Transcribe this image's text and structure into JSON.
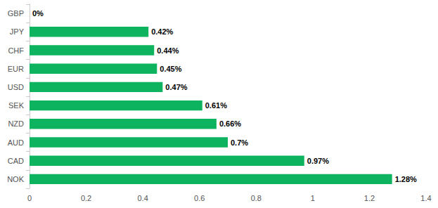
{
  "chart_data": {
    "type": "bar",
    "orientation": "horizontal",
    "categories": [
      "GBP",
      "JPY",
      "CHF",
      "EUR",
      "USD",
      "SEK",
      "NZD",
      "AUD",
      "CAD",
      "NOK"
    ],
    "values": [
      0,
      0.42,
      0.44,
      0.45,
      0.47,
      0.61,
      0.66,
      0.7,
      0.97,
      1.28
    ],
    "value_labels": [
      "0%",
      "0.42%",
      "0.44%",
      "0.45%",
      "0.47%",
      "0.61%",
      "0.66%",
      "0.7%",
      "0.97%",
      "1.28%"
    ],
    "color": "#0db35e",
    "xlim": [
      0,
      1.4
    ],
    "xticks": [
      0,
      0.2,
      0.4,
      0.6,
      0.8,
      1,
      1.2,
      1.4
    ],
    "grid": false,
    "data_labels": true
  }
}
